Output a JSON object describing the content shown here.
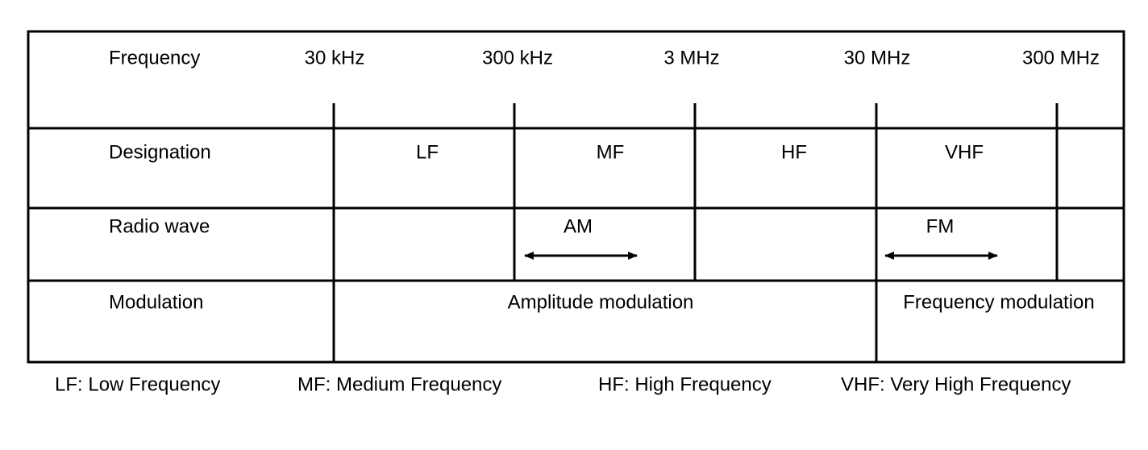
{
  "rows": {
    "frequency": "Frequency",
    "designation": "Designation",
    "radio_wave": "Radio wave",
    "modulation": "Modulation"
  },
  "frequencies": [
    "30 kHz",
    "300 kHz",
    "3 MHz",
    "30 MHz",
    "300 MHz"
  ],
  "designations": [
    "LF",
    "MF",
    "HF",
    "VHF"
  ],
  "radio_waves": [
    "AM",
    "FM"
  ],
  "modulations": [
    "Amplitude modulation",
    "Frequency modulation"
  ],
  "legend": [
    "LF: Low Frequency",
    "MF: Medium Frequency",
    "HF: High Frequency",
    "VHF: Very High Frequency"
  ]
}
